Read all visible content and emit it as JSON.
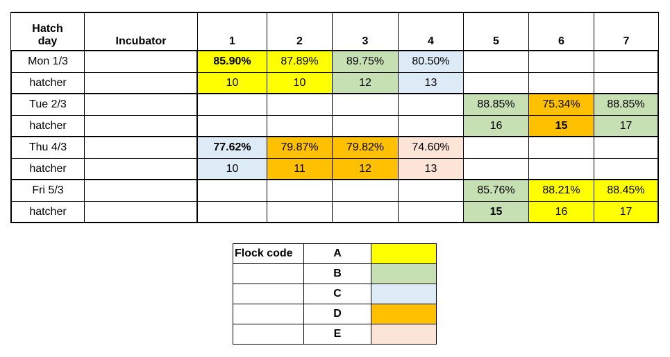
{
  "table": {
    "header": [
      "Hatch day",
      "Incubator",
      "1",
      "2",
      "3",
      "4",
      "5",
      "6",
      "7"
    ],
    "rows": [
      {
        "day": "Mon 1/3",
        "cells": [
          {
            "text": "85.90%",
            "color": "#ffff00",
            "bold": true
          },
          {
            "text": "87.89%",
            "color": "#ffff00"
          },
          {
            "text": "89.75%",
            "color": "#c6e0b4"
          },
          {
            "text": "80.50%",
            "color": "#ddebf7"
          },
          null,
          null,
          null
        ]
      },
      {
        "day": "hatcher",
        "cells": [
          {
            "text": "10",
            "color": "#ffff00"
          },
          {
            "text": "10",
            "color": "#ffff00"
          },
          {
            "text": "12",
            "color": "#c6e0b4"
          },
          {
            "text": "13",
            "color": "#ddebf7"
          },
          null,
          null,
          null
        ]
      },
      {
        "day": "Tue 2/3",
        "cells": [
          null,
          null,
          null,
          null,
          {
            "text": "88.85%",
            "color": "#c6e0b4"
          },
          {
            "text": "75.34%",
            "color": "#ffc000"
          },
          {
            "text": "88.85%",
            "color": "#c6e0b4"
          }
        ]
      },
      {
        "day": "hatcher",
        "cells": [
          null,
          null,
          null,
          null,
          {
            "text": "16",
            "color": "#c6e0b4"
          },
          {
            "text": "15",
            "color": "#ffc000",
            "bold": true
          },
          {
            "text": "17",
            "color": "#c6e0b4"
          }
        ]
      },
      {
        "day": "Thu 4/3",
        "cells": [
          {
            "text": "77.62%",
            "color": "#ddebf7",
            "bold": true
          },
          {
            "text": "79.87%",
            "color": "#ffc000"
          },
          {
            "text": "79.82%",
            "color": "#ffc000"
          },
          {
            "text": "74.60%",
            "color": "#fce4d6"
          },
          null,
          null,
          null
        ]
      },
      {
        "day": "hatcher",
        "cells": [
          {
            "text": "10",
            "color": "#ddebf7"
          },
          {
            "text": "11",
            "color": "#ffc000"
          },
          {
            "text": "12",
            "color": "#ffc000"
          },
          {
            "text": "13",
            "color": "#fce4d6"
          },
          null,
          null,
          null
        ]
      },
      {
        "day": "Fri 5/3",
        "cells": [
          null,
          null,
          null,
          null,
          {
            "text": "85.76%",
            "color": "#c6e0b4"
          },
          {
            "text": "88.21%",
            "color": "#ffff00"
          },
          {
            "text": "88.45%",
            "color": "#ffff00"
          }
        ]
      },
      {
        "day": "hatcher",
        "cells": [
          null,
          null,
          null,
          null,
          {
            "text": "15",
            "color": "#c6e0b4",
            "bold": true
          },
          {
            "text": "16",
            "color": "#ffff00"
          },
          {
            "text": "17",
            "color": "#ffff00"
          }
        ]
      }
    ]
  },
  "legend": {
    "title": "Flock code",
    "items": [
      {
        "code": "A",
        "color": "#ffff00"
      },
      {
        "code": "B",
        "color": "#c6e0b4"
      },
      {
        "code": "C",
        "color": "#ddebf7"
      },
      {
        "code": "D",
        "color": "#ffc000"
      },
      {
        "code": "E",
        "color": "#fce4d6"
      }
    ]
  }
}
